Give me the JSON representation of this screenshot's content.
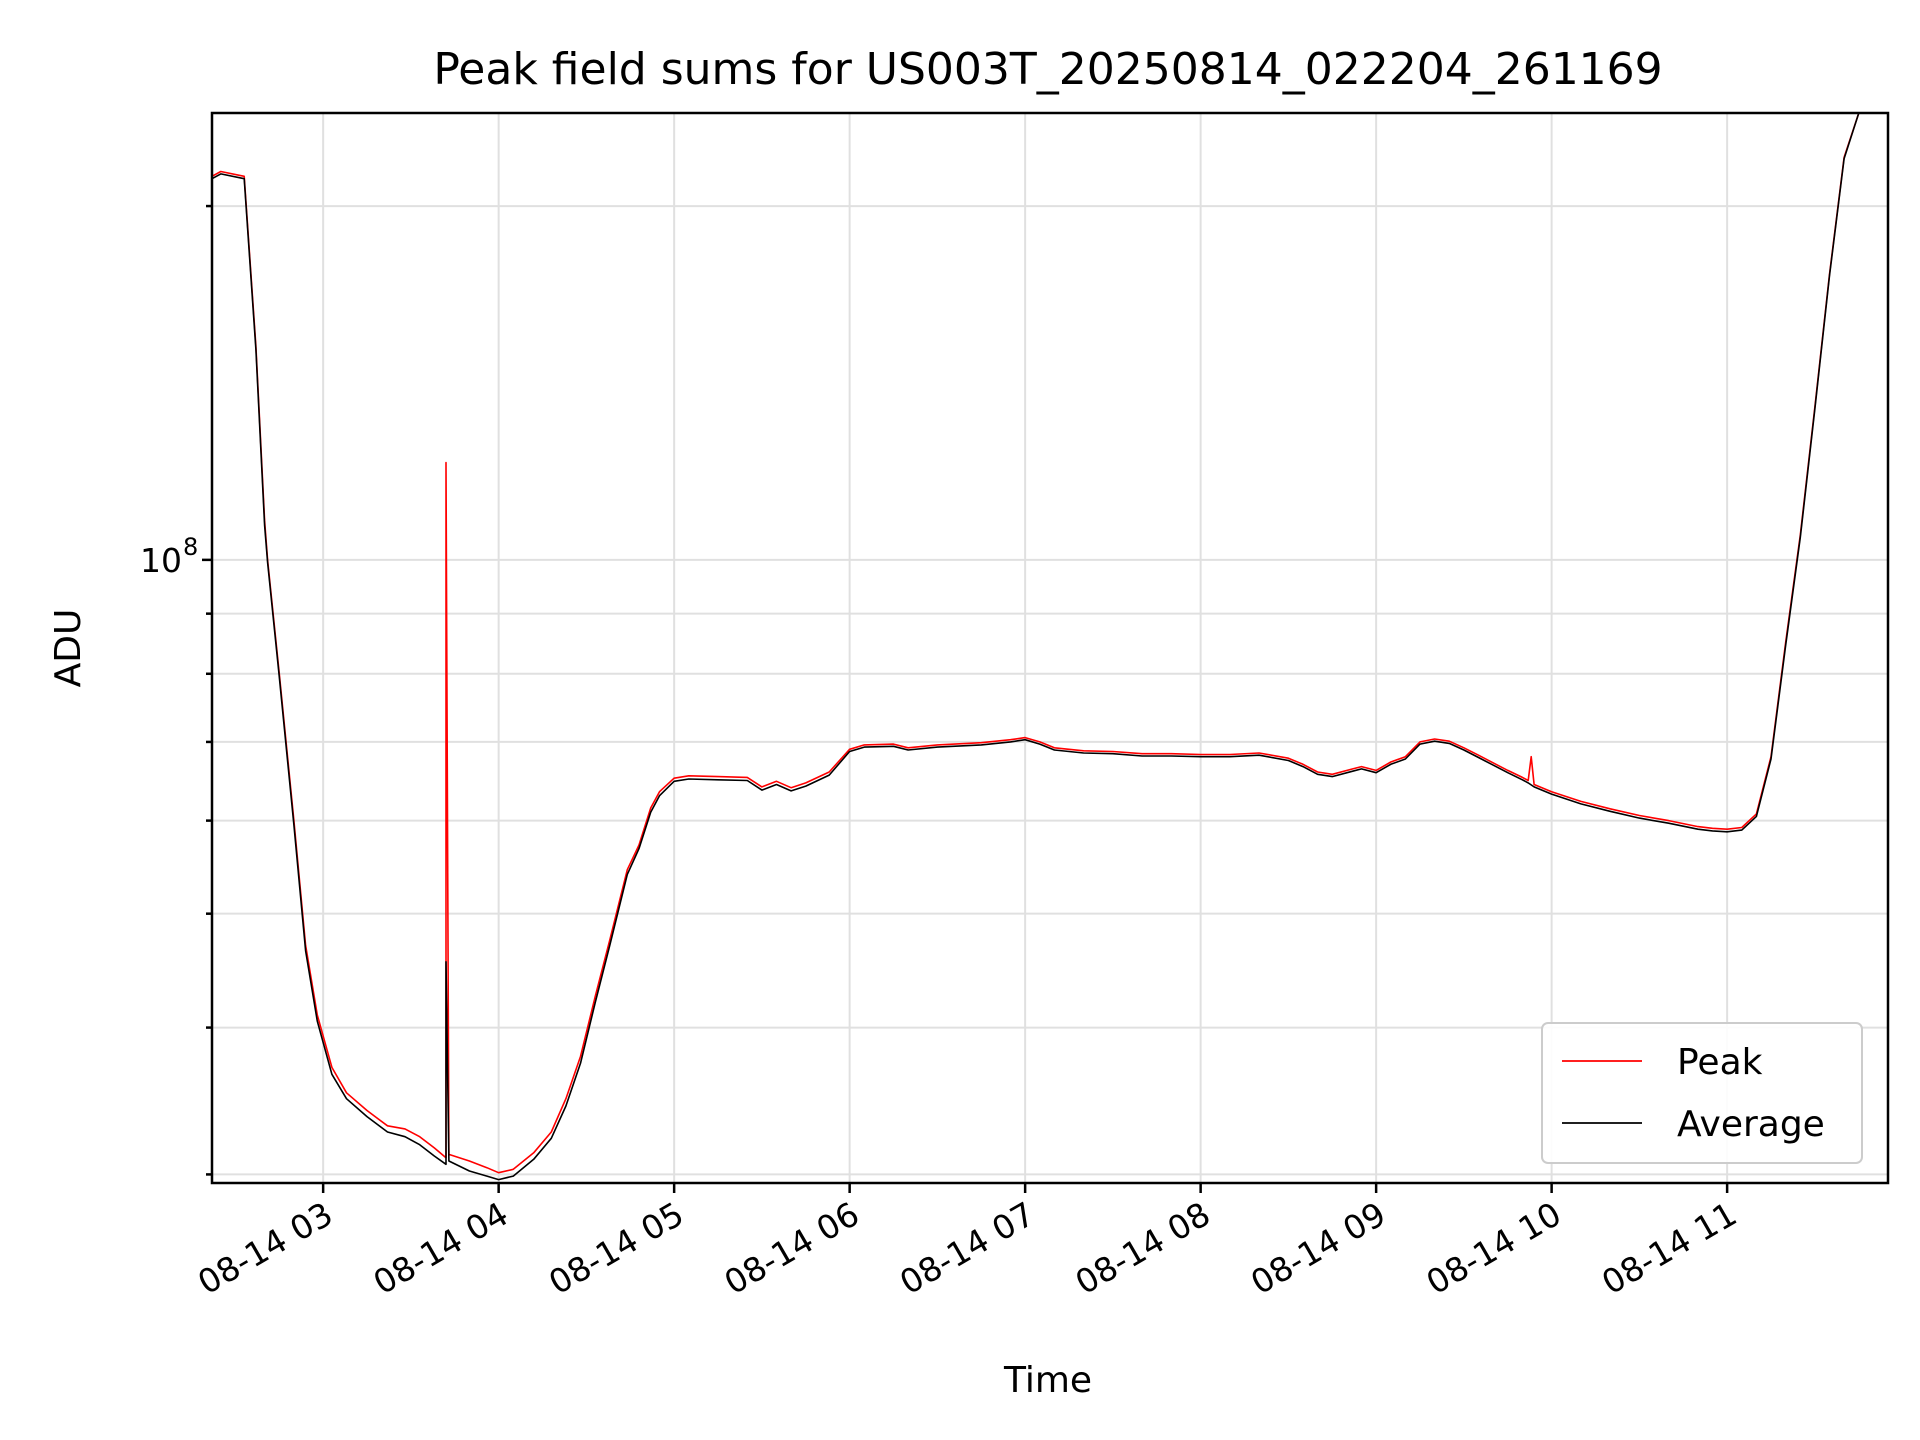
{
  "chart_data": {
    "type": "line",
    "title": "Peak field sums for US003T_20250814_022204_261169",
    "xlabel": "Time",
    "ylabel": "ADU",
    "y_scale": "log",
    "x_ticks": [
      {
        "t": "2025-08-14T03:00",
        "label": "08-14 03"
      },
      {
        "t": "2025-08-14T04:00",
        "label": "08-14 04"
      },
      {
        "t": "2025-08-14T05:00",
        "label": "08-14 05"
      },
      {
        "t": "2025-08-14T06:00",
        "label": "08-14 06"
      },
      {
        "t": "2025-08-14T07:00",
        "label": "08-14 07"
      },
      {
        "t": "2025-08-14T08:00",
        "label": "08-14 08"
      },
      {
        "t": "2025-08-14T09:00",
        "label": "08-14 09"
      },
      {
        "t": "2025-08-14T10:00",
        "label": "08-14 10"
      },
      {
        "t": "2025-08-14T11:00",
        "label": "08-14 11"
      }
    ],
    "y_tick_label": "10",
    "y_tick_exponent": "8",
    "xlim": [
      "2025-08-14T02:22",
      "2025-08-14T11:55"
    ],
    "ylim": [
      29500000,
      240000000
    ],
    "grid": true,
    "legend_position": "lower right",
    "series": [
      {
        "name": "Peak",
        "color": "#ff0000",
        "points": [
          [
            "2025-08-14T02:22",
            212000000
          ],
          [
            "2025-08-14T02:25",
            214000000
          ],
          [
            "2025-08-14T02:33",
            212000000
          ],
          [
            "2025-08-14T02:37",
            152000000
          ],
          [
            "2025-08-14T02:40",
            108000000
          ],
          [
            "2025-08-14T02:41",
            100000000
          ],
          [
            "2025-08-14T02:45",
            80000000
          ],
          [
            "2025-08-14T02:50",
            60000000
          ],
          [
            "2025-08-14T02:54",
            47000000
          ],
          [
            "2025-08-14T02:58",
            41000000
          ],
          [
            "2025-08-14T03:03",
            37000000
          ],
          [
            "2025-08-14T03:08",
            35200000
          ],
          [
            "2025-08-14T03:15",
            34000000
          ],
          [
            "2025-08-14T03:22",
            33000000
          ],
          [
            "2025-08-14T03:28",
            32800000
          ],
          [
            "2025-08-14T03:33",
            32300000
          ],
          [
            "2025-08-14T03:38",
            31600000
          ],
          [
            "2025-08-14T03:42",
            31000000
          ],
          [
            "2025-08-14T03:42",
            121000000
          ],
          [
            "2025-08-14T03:43",
            31200000
          ],
          [
            "2025-08-14T03:50",
            30800000
          ],
          [
            "2025-08-14T03:56",
            30400000
          ],
          [
            "2025-08-14T04:00",
            30100000
          ],
          [
            "2025-08-14T04:05",
            30300000
          ],
          [
            "2025-08-14T04:12",
            31300000
          ],
          [
            "2025-08-14T04:18",
            32600000
          ],
          [
            "2025-08-14T04:23",
            34800000
          ],
          [
            "2025-08-14T04:28",
            37800000
          ],
          [
            "2025-08-14T04:33",
            42500000
          ],
          [
            "2025-08-14T04:38",
            47500000
          ],
          [
            "2025-08-14T04:44",
            54500000
          ],
          [
            "2025-08-14T04:48",
            57200000
          ],
          [
            "2025-08-14T04:52",
            61500000
          ],
          [
            "2025-08-14T04:55",
            63500000
          ],
          [
            "2025-08-14T05:00",
            65200000
          ],
          [
            "2025-08-14T05:05",
            65500000
          ],
          [
            "2025-08-14T05:15",
            65400000
          ],
          [
            "2025-08-14T05:25",
            65300000
          ],
          [
            "2025-08-14T05:30",
            64100000
          ],
          [
            "2025-08-14T05:35",
            64800000
          ],
          [
            "2025-08-14T05:40",
            64000000
          ],
          [
            "2025-08-14T05:45",
            64600000
          ],
          [
            "2025-08-14T05:53",
            66000000
          ],
          [
            "2025-08-14T06:00",
            69000000
          ],
          [
            "2025-08-14T06:05",
            69600000
          ],
          [
            "2025-08-14T06:15",
            69700000
          ],
          [
            "2025-08-14T06:20",
            69200000
          ],
          [
            "2025-08-14T06:30",
            69600000
          ],
          [
            "2025-08-14T06:45",
            69900000
          ],
          [
            "2025-08-14T06:55",
            70300000
          ],
          [
            "2025-08-14T07:00",
            70600000
          ],
          [
            "2025-08-14T07:05",
            70000000
          ],
          [
            "2025-08-14T07:10",
            69200000
          ],
          [
            "2025-08-14T07:20",
            68800000
          ],
          [
            "2025-08-14T07:30",
            68700000
          ],
          [
            "2025-08-14T07:40",
            68400000
          ],
          [
            "2025-08-14T07:50",
            68400000
          ],
          [
            "2025-08-14T08:00",
            68300000
          ],
          [
            "2025-08-14T08:10",
            68300000
          ],
          [
            "2025-08-14T08:20",
            68500000
          ],
          [
            "2025-08-14T08:30",
            67800000
          ],
          [
            "2025-08-14T08:35",
            67000000
          ],
          [
            "2025-08-14T08:40",
            66000000
          ],
          [
            "2025-08-14T08:45",
            65700000
          ],
          [
            "2025-08-14T08:52",
            66400000
          ],
          [
            "2025-08-14T08:55",
            66700000
          ],
          [
            "2025-08-14T09:00",
            66200000
          ],
          [
            "2025-08-14T09:05",
            67300000
          ],
          [
            "2025-08-14T09:10",
            68000000
          ],
          [
            "2025-08-14T09:15",
            70000000
          ],
          [
            "2025-08-14T09:20",
            70400000
          ],
          [
            "2025-08-14T09:25",
            70100000
          ],
          [
            "2025-08-14T09:30",
            69200000
          ],
          [
            "2025-08-14T09:35",
            68200000
          ],
          [
            "2025-08-14T09:40",
            67200000
          ],
          [
            "2025-08-14T09:45",
            66200000
          ],
          [
            "2025-08-14T09:50",
            65300000
          ],
          [
            "2025-08-14T09:52",
            64900000
          ],
          [
            "2025-08-14T09:53",
            68000000
          ],
          [
            "2025-08-14T09:54",
            64400000
          ],
          [
            "2025-08-14T10:00",
            63500000
          ],
          [
            "2025-08-14T10:10",
            62300000
          ],
          [
            "2025-08-14T10:20",
            61400000
          ],
          [
            "2025-08-14T10:30",
            60600000
          ],
          [
            "2025-08-14T10:40",
            60000000
          ],
          [
            "2025-08-14T10:50",
            59300000
          ],
          [
            "2025-08-14T10:55",
            59100000
          ],
          [
            "2025-08-14T11:00",
            59000000
          ],
          [
            "2025-08-14T11:05",
            59200000
          ],
          [
            "2025-08-14T11:10",
            60800000
          ],
          [
            "2025-08-14T11:15",
            68000000
          ],
          [
            "2025-08-14T11:20",
            85000000
          ],
          [
            "2025-08-14T11:25",
            105000000
          ],
          [
            "2025-08-14T11:30",
            135000000
          ],
          [
            "2025-08-14T11:35",
            175000000
          ],
          [
            "2025-08-14T11:40",
            220000000
          ],
          [
            "2025-08-14T11:45",
            240000000
          ],
          [
            "2025-08-14T11:55",
            240000000
          ]
        ]
      },
      {
        "name": "Average",
        "color": "#000000",
        "points": [
          [
            "2025-08-14T02:22",
            211000000
          ],
          [
            "2025-08-14T02:25",
            213000000
          ],
          [
            "2025-08-14T02:33",
            211000000
          ],
          [
            "2025-08-14T02:37",
            151000000
          ],
          [
            "2025-08-14T02:40",
            107000000
          ],
          [
            "2025-08-14T02:41",
            99500000
          ],
          [
            "2025-08-14T02:45",
            79500000
          ],
          [
            "2025-08-14T02:50",
            59500000
          ],
          [
            "2025-08-14T02:54",
            46500000
          ],
          [
            "2025-08-14T02:58",
            40500000
          ],
          [
            "2025-08-14T03:03",
            36500000
          ],
          [
            "2025-08-14T03:08",
            34800000
          ],
          [
            "2025-08-14T03:15",
            33600000
          ],
          [
            "2025-08-14T03:22",
            32600000
          ],
          [
            "2025-08-14T03:28",
            32300000
          ],
          [
            "2025-08-14T03:33",
            31800000
          ],
          [
            "2025-08-14T03:38",
            31100000
          ],
          [
            "2025-08-14T03:42",
            30600000
          ],
          [
            "2025-08-14T03:42",
            45500000
          ],
          [
            "2025-08-14T03:43",
            30800000
          ],
          [
            "2025-08-14T03:50",
            30200000
          ],
          [
            "2025-08-14T03:56",
            29900000
          ],
          [
            "2025-08-14T04:00",
            29700000
          ],
          [
            "2025-08-14T04:05",
            29900000
          ],
          [
            "2025-08-14T04:12",
            30900000
          ],
          [
            "2025-08-14T04:18",
            32200000
          ],
          [
            "2025-08-14T04:23",
            34300000
          ],
          [
            "2025-08-14T04:28",
            37300000
          ],
          [
            "2025-08-14T04:33",
            42000000
          ],
          [
            "2025-08-14T04:38",
            47000000
          ],
          [
            "2025-08-14T04:44",
            54000000
          ],
          [
            "2025-08-14T04:48",
            56800000
          ],
          [
            "2025-08-14T04:52",
            61000000
          ],
          [
            "2025-08-14T04:55",
            63000000
          ],
          [
            "2025-08-14T05:00",
            64800000
          ],
          [
            "2025-08-14T05:05",
            65100000
          ],
          [
            "2025-08-14T05:15",
            65000000
          ],
          [
            "2025-08-14T05:25",
            64900000
          ],
          [
            "2025-08-14T05:30",
            63700000
          ],
          [
            "2025-08-14T05:35",
            64400000
          ],
          [
            "2025-08-14T05:40",
            63600000
          ],
          [
            "2025-08-14T05:45",
            64200000
          ],
          [
            "2025-08-14T05:53",
            65600000
          ],
          [
            "2025-08-14T06:00",
            68700000
          ],
          [
            "2025-08-14T06:05",
            69300000
          ],
          [
            "2025-08-14T06:15",
            69400000
          ],
          [
            "2025-08-14T06:20",
            68900000
          ],
          [
            "2025-08-14T06:30",
            69300000
          ],
          [
            "2025-08-14T06:45",
            69600000
          ],
          [
            "2025-08-14T06:55",
            70000000
          ],
          [
            "2025-08-14T07:00",
            70300000
          ],
          [
            "2025-08-14T07:05",
            69700000
          ],
          [
            "2025-08-14T07:10",
            68900000
          ],
          [
            "2025-08-14T07:20",
            68500000
          ],
          [
            "2025-08-14T07:30",
            68400000
          ],
          [
            "2025-08-14T07:40",
            68100000
          ],
          [
            "2025-08-14T07:50",
            68100000
          ],
          [
            "2025-08-14T08:00",
            68000000
          ],
          [
            "2025-08-14T08:10",
            68000000
          ],
          [
            "2025-08-14T08:20",
            68200000
          ],
          [
            "2025-08-14T08:30",
            67500000
          ],
          [
            "2025-08-14T08:35",
            66700000
          ],
          [
            "2025-08-14T08:40",
            65700000
          ],
          [
            "2025-08-14T08:45",
            65400000
          ],
          [
            "2025-08-14T08:52",
            66100000
          ],
          [
            "2025-08-14T08:55",
            66400000
          ],
          [
            "2025-08-14T09:00",
            65900000
          ],
          [
            "2025-08-14T09:05",
            67000000
          ],
          [
            "2025-08-14T09:10",
            67700000
          ],
          [
            "2025-08-14T09:15",
            69700000
          ],
          [
            "2025-08-14T09:20",
            70100000
          ],
          [
            "2025-08-14T09:25",
            69800000
          ],
          [
            "2025-08-14T09:30",
            68900000
          ],
          [
            "2025-08-14T09:35",
            67900000
          ],
          [
            "2025-08-14T09:40",
            66900000
          ],
          [
            "2025-08-14T09:45",
            65900000
          ],
          [
            "2025-08-14T09:50",
            65000000
          ],
          [
            "2025-08-14T09:52",
            64600000
          ],
          [
            "2025-08-14T09:54",
            64100000
          ],
          [
            "2025-08-14T10:00",
            63200000
          ],
          [
            "2025-08-14T10:10",
            62000000
          ],
          [
            "2025-08-14T10:20",
            61100000
          ],
          [
            "2025-08-14T10:30",
            60300000
          ],
          [
            "2025-08-14T10:40",
            59700000
          ],
          [
            "2025-08-14T10:50",
            59000000
          ],
          [
            "2025-08-14T10:55",
            58800000
          ],
          [
            "2025-08-14T11:00",
            58700000
          ],
          [
            "2025-08-14T11:05",
            58900000
          ],
          [
            "2025-08-14T11:10",
            60500000
          ],
          [
            "2025-08-14T11:15",
            67700000
          ],
          [
            "2025-08-14T11:20",
            84500000
          ],
          [
            "2025-08-14T11:25",
            104500000
          ],
          [
            "2025-08-14T11:30",
            134500000
          ],
          [
            "2025-08-14T11:35",
            174500000
          ],
          [
            "2025-08-14T11:40",
            219500000
          ],
          [
            "2025-08-14T11:45",
            240000000
          ],
          [
            "2025-08-14T11:55",
            240000000
          ]
        ]
      }
    ]
  }
}
